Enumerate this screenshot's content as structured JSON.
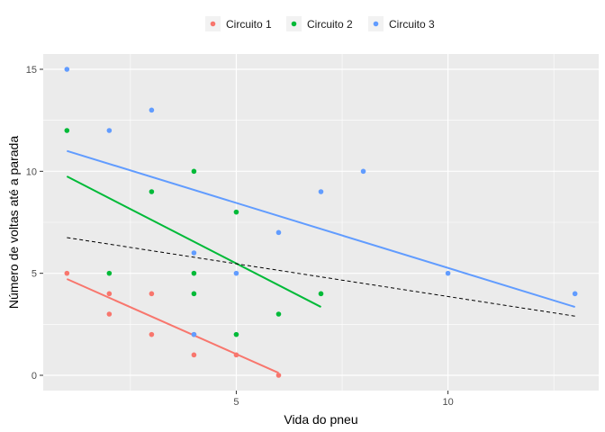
{
  "chart_data": {
    "type": "scatter",
    "title": "",
    "xlabel": "Vida do pneu",
    "ylabel": "Número de voltas até a parada",
    "xlim": [
      0.44,
      13.56
    ],
    "ylim": [
      -0.75,
      15.75
    ],
    "x_ticks": [
      5,
      10
    ],
    "x_tick_labels": [
      "5",
      "10"
    ],
    "x_minor": [
      2.5,
      7.5,
      12.5
    ],
    "y_ticks": [
      0,
      5,
      10,
      15
    ],
    "y_tick_labels": [
      "0",
      "5",
      "10",
      "15"
    ],
    "y_minor": [
      2.5,
      7.5,
      12.5
    ],
    "grid": true,
    "legend_position": "top",
    "background": "#EBEBEB",
    "series": [
      {
        "name": "Circuito 1",
        "color": "#F8766D",
        "points": [
          [
            1,
            5
          ],
          [
            2,
            4
          ],
          [
            2,
            3
          ],
          [
            3,
            4
          ],
          [
            3,
            2
          ],
          [
            4,
            2
          ],
          [
            4,
            1
          ],
          [
            5,
            1
          ],
          [
            6,
            0
          ]
        ],
        "fit": [
          [
            1,
            4.72
          ],
          [
            6,
            0.12
          ]
        ]
      },
      {
        "name": "Circuito 2",
        "color": "#00BA38",
        "points": [
          [
            1,
            12
          ],
          [
            2,
            5
          ],
          [
            3,
            9
          ],
          [
            4,
            10
          ],
          [
            4,
            5
          ],
          [
            4,
            4
          ],
          [
            5,
            8
          ],
          [
            5,
            2
          ],
          [
            6,
            3
          ],
          [
            7,
            4
          ]
        ],
        "fit": [
          [
            1,
            9.75
          ],
          [
            7,
            3.35
          ]
        ]
      },
      {
        "name": "Circuito 3",
        "color": "#619CFF",
        "points": [
          [
            1,
            15
          ],
          [
            2,
            12
          ],
          [
            3,
            13
          ],
          [
            4,
            6
          ],
          [
            4,
            2
          ],
          [
            5,
            5
          ],
          [
            6,
            7
          ],
          [
            7,
            9
          ],
          [
            8,
            10
          ],
          [
            10,
            5
          ],
          [
            13,
            4
          ]
        ],
        "fit": [
          [
            1,
            11.0
          ],
          [
            13,
            3.35
          ]
        ]
      }
    ],
    "overall_fit": {
      "style": "dashed",
      "color": "#000000",
      "points": [
        [
          1,
          6.75
        ],
        [
          13,
          2.9
        ]
      ]
    }
  }
}
